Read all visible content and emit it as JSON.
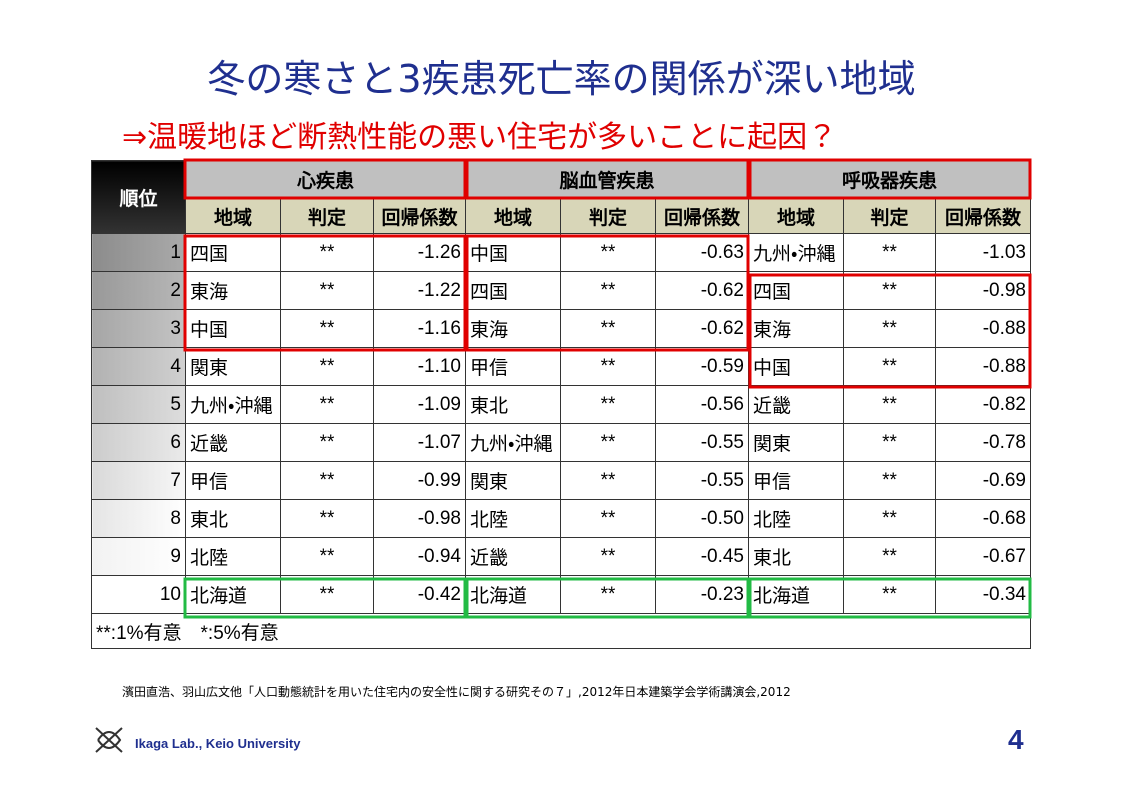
{
  "header": {
    "title": "冬の寒さと3疾患死亡率の関係が深い地域",
    "subtitle": "⇒温暖地ほど断熱性能の悪い住宅が多いことに起因？"
  },
  "table": {
    "rank_header": "順位",
    "groups": [
      "心疾患",
      "脳血管疾患",
      "呼吸器疾患"
    ],
    "columns": [
      "地域",
      "判定",
      "回帰係数"
    ],
    "rows": [
      [
        "1",
        "四国",
        "**",
        "-1.26",
        "中国",
        "**",
        "-0.63",
        "九州・沖縄",
        "**",
        "-1.03"
      ],
      [
        "2",
        "東海",
        "**",
        "-1.22",
        "四国",
        "**",
        "-0.62",
        "四国",
        "**",
        "-0.98"
      ],
      [
        "3",
        "中国",
        "**",
        "-1.16",
        "東海",
        "**",
        "-0.62",
        "東海",
        "**",
        "-0.88"
      ],
      [
        "4",
        "関東",
        "**",
        "-1.10",
        "甲信",
        "**",
        "-0.59",
        "中国",
        "**",
        "-0.88"
      ],
      [
        "5",
        "九州・沖縄",
        "**",
        "-1.09",
        "東北",
        "**",
        "-0.56",
        "近畿",
        "**",
        "-0.82"
      ],
      [
        "6",
        "近畿",
        "**",
        "-1.07",
        "九州・沖縄",
        "**",
        "-0.55",
        "関東",
        "**",
        "-0.78"
      ],
      [
        "7",
        "甲信",
        "**",
        "-0.99",
        "関東",
        "**",
        "-0.55",
        "甲信",
        "**",
        "-0.69"
      ],
      [
        "8",
        "東北",
        "**",
        "-0.98",
        "北陸",
        "**",
        "-0.50",
        "北陸",
        "**",
        "-0.68"
      ],
      [
        "9",
        "北陸",
        "**",
        "-0.94",
        "近畿",
        "**",
        "-0.45",
        "東北",
        "**",
        "-0.67"
      ],
      [
        "10",
        "北海道",
        "**",
        "-0.42",
        "北海道",
        "**",
        "-0.23",
        "北海道",
        "**",
        "-0.34"
      ]
    ],
    "note": "**:1%有意　*:5%有意"
  },
  "citation": "濱田直浩、羽山広文他「人口動態統計を用いた住宅内の安全性に関する研究その７」,2012年日本建築学会学術講演会,2012",
  "footer": {
    "lab": "Ikaga Lab., Keio University",
    "page": "4"
  }
}
